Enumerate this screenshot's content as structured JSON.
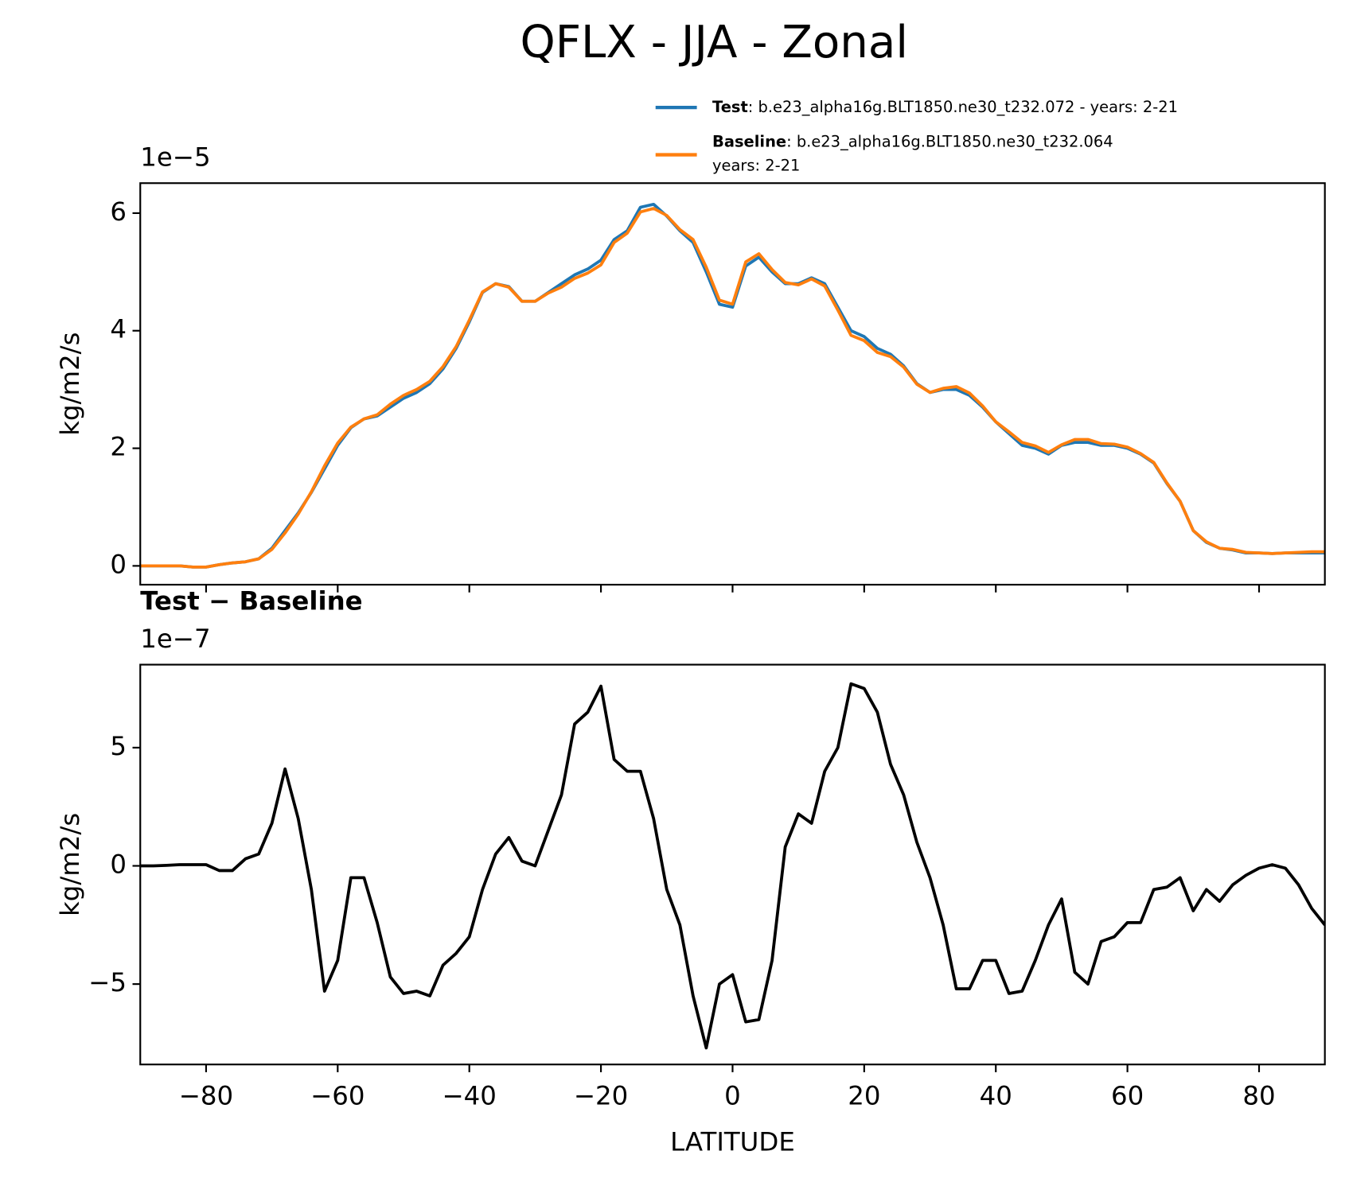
{
  "chart_data": [
    {
      "type": "line",
      "suptitle": "QFLX - JJA - Zonal",
      "ylabel": "kg/m2/s",
      "offset_text": "1e−5",
      "x": [
        -90,
        -88,
        -86,
        -84,
        -82,
        -80,
        -78,
        -76,
        -74,
        -72,
        -70,
        -68,
        -66,
        -64,
        -62,
        -60,
        -58,
        -56,
        -54,
        -52,
        -50,
        -48,
        -46,
        -44,
        -42,
        -40,
        -38,
        -36,
        -34,
        -32,
        -30,
        -28,
        -26,
        -24,
        -22,
        -20,
        -18,
        -16,
        -14,
        -12,
        -10,
        -8,
        -6,
        -4,
        -2,
        0,
        2,
        4,
        6,
        8,
        10,
        12,
        14,
        16,
        18,
        20,
        22,
        24,
        26,
        28,
        30,
        32,
        34,
        36,
        38,
        40,
        42,
        44,
        46,
        48,
        50,
        52,
        54,
        56,
        58,
        60,
        62,
        64,
        66,
        68,
        70,
        72,
        74,
        76,
        78,
        80,
        82,
        84,
        86,
        88,
        90
      ],
      "series": [
        {
          "name": "Test",
          "legend_text": [
            ": b.e23_alpha16g.BLT1850.ne30_t232.072 - years: 2-21"
          ],
          "color": "#1f77b4",
          "values": [
            0,
            0,
            0,
            0,
            -0.02,
            -0.02,
            0.02,
            0.05,
            0.07,
            0.12,
            0.3,
            0.6,
            0.9,
            1.25,
            1.65,
            2.05,
            2.35,
            2.5,
            2.55,
            2.7,
            2.85,
            2.95,
            3.1,
            3.35,
            3.7,
            4.15,
            4.65,
            4.8,
            4.75,
            4.5,
            4.5,
            4.65,
            4.8,
            4.95,
            5.05,
            5.2,
            5.55,
            5.7,
            6.1,
            6.15,
            5.95,
            5.7,
            5.5,
            5.0,
            4.45,
            4.4,
            5.1,
            5.25,
            5.0,
            4.8,
            4.8,
            4.9,
            4.8,
            4.4,
            4.0,
            3.9,
            3.7,
            3.6,
            3.4,
            3.1,
            2.95,
            3.0,
            3.0,
            2.9,
            2.7,
            2.45,
            2.25,
            2.05,
            2.0,
            1.9,
            2.05,
            2.1,
            2.1,
            2.05,
            2.05,
            2.0,
            1.9,
            1.75,
            1.4,
            1.1,
            0.6,
            0.4,
            0.3,
            0.27,
            0.22,
            0.22,
            0.21,
            0.22,
            0.22,
            0.22,
            0.22
          ]
        },
        {
          "name": "Baseline",
          "legend_text": [
            ": b.e23_alpha16g.BLT1850.ne30_t232.064",
            "years: 2-21"
          ],
          "color": "#ff7f0e",
          "values": [
            0,
            0,
            0,
            0,
            -0.02,
            -0.02,
            0.02,
            0.05,
            0.07,
            0.12,
            0.28,
            0.56,
            0.88,
            1.26,
            1.7,
            2.09,
            2.36,
            2.5,
            2.57,
            2.75,
            2.9,
            3.0,
            3.14,
            3.39,
            3.73,
            4.18,
            4.66,
            4.8,
            4.74,
            4.5,
            4.5,
            4.64,
            4.74,
            4.89,
            4.98,
            5.12,
            5.5,
            5.66,
            6.02,
            6.08,
            5.96,
            5.72,
            5.55,
            5.08,
            4.52,
            4.45,
            5.17,
            5.31,
            5.04,
            4.82,
            4.78,
            4.88,
            4.76,
            4.35,
            3.92,
            3.83,
            3.63,
            3.56,
            3.38,
            3.09,
            2.95,
            3.02,
            3.05,
            2.94,
            2.72,
            2.45,
            2.28,
            2.1,
            2.04,
            1.93,
            2.06,
            2.15,
            2.15,
            2.08,
            2.07,
            2.02,
            1.91,
            1.76,
            1.41,
            1.1,
            0.6,
            0.41,
            0.3,
            0.28,
            0.23,
            0.22,
            0.21,
            0.22,
            0.23,
            0.24,
            0.24
          ]
        }
      ],
      "xlim": [
        -90,
        90
      ],
      "xticks": [
        -80,
        -60,
        -40,
        -20,
        0,
        20,
        40,
        60,
        80
      ],
      "ylim": [
        -0.32,
        6.51
      ],
      "yticks": [
        0,
        2,
        4,
        6
      ]
    },
    {
      "type": "line",
      "title": "Test − Baseline",
      "ylabel": "kg/m2/s",
      "xlabel": "LATITUDE",
      "offset_text": "1e−7",
      "x": [
        -90,
        -88,
        -86,
        -84,
        -82,
        -80,
        -78,
        -76,
        -74,
        -72,
        -70,
        -68,
        -66,
        -64,
        -62,
        -60,
        -58,
        -56,
        -54,
        -52,
        -50,
        -48,
        -46,
        -44,
        -42,
        -40,
        -38,
        -36,
        -34,
        -32,
        -30,
        -28,
        -26,
        -24,
        -22,
        -20,
        -18,
        -16,
        -14,
        -12,
        -10,
        -8,
        -6,
        -4,
        -2,
        0,
        2,
        4,
        6,
        8,
        10,
        12,
        14,
        16,
        18,
        20,
        22,
        24,
        26,
        28,
        30,
        32,
        34,
        36,
        38,
        40,
        42,
        44,
        46,
        48,
        50,
        52,
        54,
        56,
        58,
        60,
        62,
        64,
        66,
        68,
        70,
        72,
        74,
        76,
        78,
        80,
        82,
        84,
        86,
        88,
        90
      ],
      "series": [
        {
          "color": "#000000",
          "values": [
            0,
            0,
            0.02,
            0.05,
            0.05,
            0.05,
            -0.2,
            -0.2,
            0.3,
            0.5,
            1.8,
            4.1,
            2.0,
            -1.0,
            -5.3,
            -4.0,
            -0.5,
            -0.5,
            -2.4,
            -4.7,
            -5.4,
            -5.3,
            -5.5,
            -4.2,
            -3.7,
            -3.0,
            -1.0,
            0.5,
            1.2,
            0.2,
            0.0,
            1.5,
            3.0,
            6.0,
            6.5,
            7.6,
            4.5,
            4.0,
            4.0,
            2.0,
            -1.0,
            -2.5,
            -5.5,
            -7.7,
            -5.0,
            -4.6,
            -6.6,
            -6.5,
            -4.0,
            0.8,
            2.2,
            1.8,
            4.0,
            5.0,
            7.7,
            7.5,
            6.5,
            4.3,
            3.0,
            1.0,
            -0.5,
            -2.5,
            -5.2,
            -5.2,
            -4.0,
            -4.0,
            -5.4,
            -5.3,
            -4.0,
            -2.5,
            -1.4,
            -4.5,
            -5.0,
            -3.2,
            -3.0,
            -2.4,
            -2.4,
            -1.0,
            -0.9,
            -0.5,
            -1.9,
            -1.0,
            -1.5,
            -0.8,
            -0.4,
            -0.1,
            0.05,
            -0.1,
            -0.8,
            -1.8,
            -2.5
          ]
        }
      ],
      "xlim": [
        -90,
        90
      ],
      "xticks": [
        {
          "value": -80,
          "label": "−80"
        },
        {
          "value": -60,
          "label": "−60"
        },
        {
          "value": -40,
          "label": "−40"
        },
        {
          "value": -20,
          "label": "−20"
        },
        0,
        20,
        40,
        60,
        80
      ],
      "ylim": [
        -8.4,
        8.51
      ],
      "yticks": [
        {
          "value": -5,
          "label": "−5"
        },
        0,
        5
      ]
    }
  ]
}
